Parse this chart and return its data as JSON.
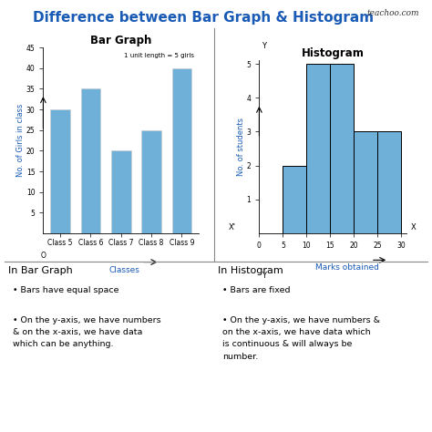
{
  "title": "Difference between Bar Graph & Histogram",
  "title_color": "#1A5BB5",
  "title_fontsize": 11,
  "teachoo_text": "teachoo.com",
  "bg_color": "#FFFFFF",
  "divider_color": "#888888",
  "bar_graph_title": "Bar Graph",
  "bar_graph_categories": [
    "Class 5",
    "Class 6",
    "Class 7",
    "Class 8",
    "Class 9"
  ],
  "bar_graph_values": [
    30,
    35,
    20,
    25,
    40
  ],
  "bar_graph_xlabel": "Classes",
  "bar_graph_ylabel": "No. of Girls in class",
  "bar_graph_ylim": [
    0,
    45
  ],
  "bar_graph_yticks": [
    5,
    10,
    15,
    20,
    25,
    30,
    35,
    40,
    45
  ],
  "bar_graph_annotation": "1 unit length = 5 girls",
  "bar_color": "#6EB0D8",
  "histogram_title": "Histogram",
  "histogram_bins": [
    0,
    5,
    10,
    15,
    20,
    25,
    30
  ],
  "histogram_values": [
    0,
    2,
    5,
    5,
    3,
    3
  ],
  "histogram_xlabel": "Marks obtained",
  "histogram_ylabel": "No. of students",
  "histogram_ylim": [
    0,
    5
  ],
  "histogram_yticks": [
    1,
    2,
    3,
    4,
    5
  ],
  "histogram_xticks": [
    0,
    5,
    10,
    15,
    20,
    25,
    30
  ],
  "left_text_title": "In Bar Graph",
  "left_bullets": [
    "Bars have equal space",
    "On the y-axis, we have numbers\n& on the x-axis, we have data\nwhich can be anything."
  ],
  "right_text_title": "In Histogram",
  "right_bullets": [
    "Bars are fixed",
    "On the y-axis, we have numbers &\non the x-axis, we have data which\nis continuous & will always be\nnumber."
  ]
}
